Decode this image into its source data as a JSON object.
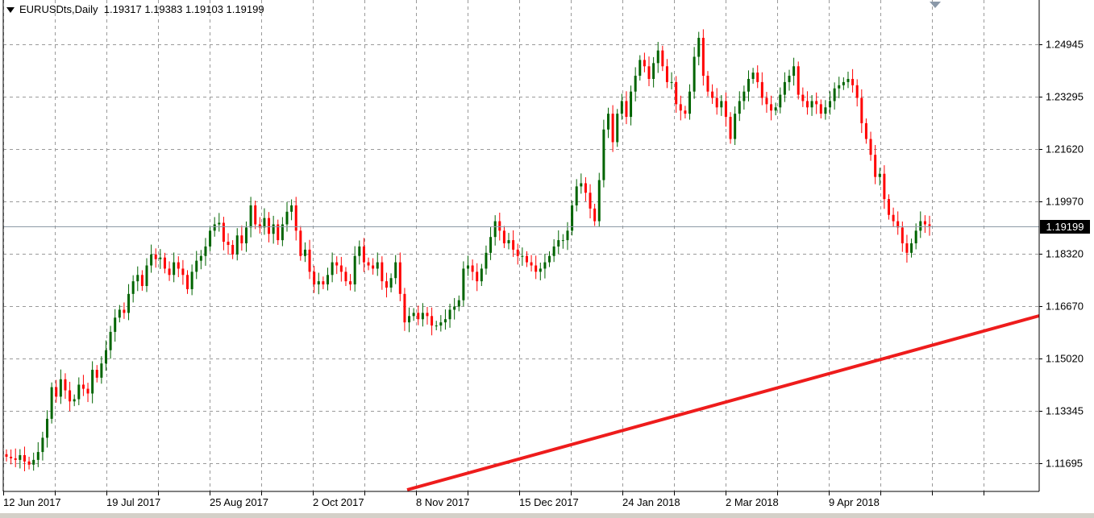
{
  "header": {
    "symbol": "EURUSDts,Daily",
    "ohlc": "1.19317 1.19383 1.19103 1.19199"
  },
  "current_price": "1.19199",
  "colors": {
    "bull": "#006400",
    "bear": "#ff0000",
    "trendline": "#e00000",
    "grid": "#a0a0a0"
  },
  "chart_data": {
    "type": "candlestick",
    "title": "EURUSDts,Daily",
    "y_ticks": [
      "1.24945",
      "1.23295",
      "1.21620",
      "1.19970",
      "1.18320",
      "1.16670",
      "1.15020",
      "1.13345",
      "1.11695"
    ],
    "x_ticks": [
      "12 Jun 2017",
      "19 Jul 2017",
      "25 Aug 2017",
      "2 Oct 2017",
      "8 Nov 2017",
      "15 Dec 2017",
      "24 Jan 2018",
      "2 Mar 2018",
      "9 Apr 2018"
    ],
    "ylim": [
      1.1095,
      1.2595
    ],
    "grid": true,
    "current_price_line": 1.19199,
    "close_series": [
      1.119,
      1.1185,
      1.118,
      1.1195,
      1.1175,
      1.1165,
      1.118,
      1.1205,
      1.125,
      1.131,
      1.141,
      1.138,
      1.1435,
      1.14,
      1.1365,
      1.1372,
      1.1418,
      1.1405,
      1.139,
      1.1465,
      1.144,
      1.1485,
      1.1527,
      1.1585,
      1.163,
      1.1655,
      1.1645,
      1.1705,
      1.1745,
      1.1765,
      1.173,
      1.1795,
      1.183,
      1.1815,
      1.182,
      1.1785,
      1.1765,
      1.1805,
      1.1785,
      1.1765,
      1.172,
      1.1775,
      1.181,
      1.1825,
      1.1855,
      1.1905,
      1.1925,
      1.193,
      1.187,
      1.186,
      1.183,
      1.189,
      1.1865,
      1.1915,
      1.1985,
      1.1925,
      1.1915,
      1.1945,
      1.1895,
      1.1925,
      1.1875,
      1.1925,
      1.1965,
      1.1985,
      1.1905,
      1.1825,
      1.1845,
      1.1775,
      1.1735,
      1.1745,
      1.1735,
      1.1765,
      1.1805,
      1.1795,
      1.1775,
      1.1745,
      1.1735,
      1.1825,
      1.1855,
      1.1805,
      1.1795,
      1.1785,
      1.1805,
      1.1745,
      1.1725,
      1.1755,
      1.1805,
      1.1705,
      1.1615,
      1.1635,
      1.1645,
      1.1625,
      1.1645,
      1.1635,
      1.1605,
      1.1605,
      1.1615,
      1.1625,
      1.1655,
      1.1665,
      1.1685,
      1.1785,
      1.1795,
      1.1775,
      1.1745,
      1.1785,
      1.1835,
      1.1885,
      1.1935,
      1.1905,
      1.1865,
      1.1875,
      1.1845,
      1.1825,
      1.1825,
      1.1805,
      1.1795,
      1.1775,
      1.1785,
      1.1805,
      1.1825,
      1.1855,
      1.1875,
      1.1875,
      1.1905,
      1.1985,
      1.2045,
      1.2055,
      1.2025,
      1.1975,
      1.1935,
      1.2065,
      1.2225,
      1.2275,
      1.2185,
      1.2275,
      1.2315,
      1.2265,
      1.2345,
      1.2395,
      1.2445,
      1.2425,
      1.2385,
      1.2435,
      1.2475,
      1.2425,
      1.2375,
      1.2375,
      1.2305,
      1.2285,
      1.2275,
      1.2345,
      1.2455,
      1.2515,
      1.2395,
      1.2345,
      1.2325,
      1.2295,
      1.2315,
      1.2265,
      1.2195,
      1.2275,
      1.2315,
      1.2345,
      1.2385,
      1.2405,
      1.2375,
      1.2325,
      1.2305,
      1.2285,
      1.2295,
      1.2335,
      1.2375,
      1.2395,
      1.2425,
      1.2335,
      1.2315,
      1.2295,
      1.2315,
      1.2305,
      1.2275,
      1.2295,
      1.2315,
      1.2355,
      1.2365,
      1.2375,
      1.2385,
      1.2365,
      1.2325,
      1.2245,
      1.2195,
      1.2145,
      1.2075,
      1.2085,
      1.2005,
      1.1955,
      1.1935,
      1.1915,
      1.1865,
      1.1835,
      1.1865,
      1.1905,
      1.1935,
      1.1925,
      1.192
    ]
  }
}
